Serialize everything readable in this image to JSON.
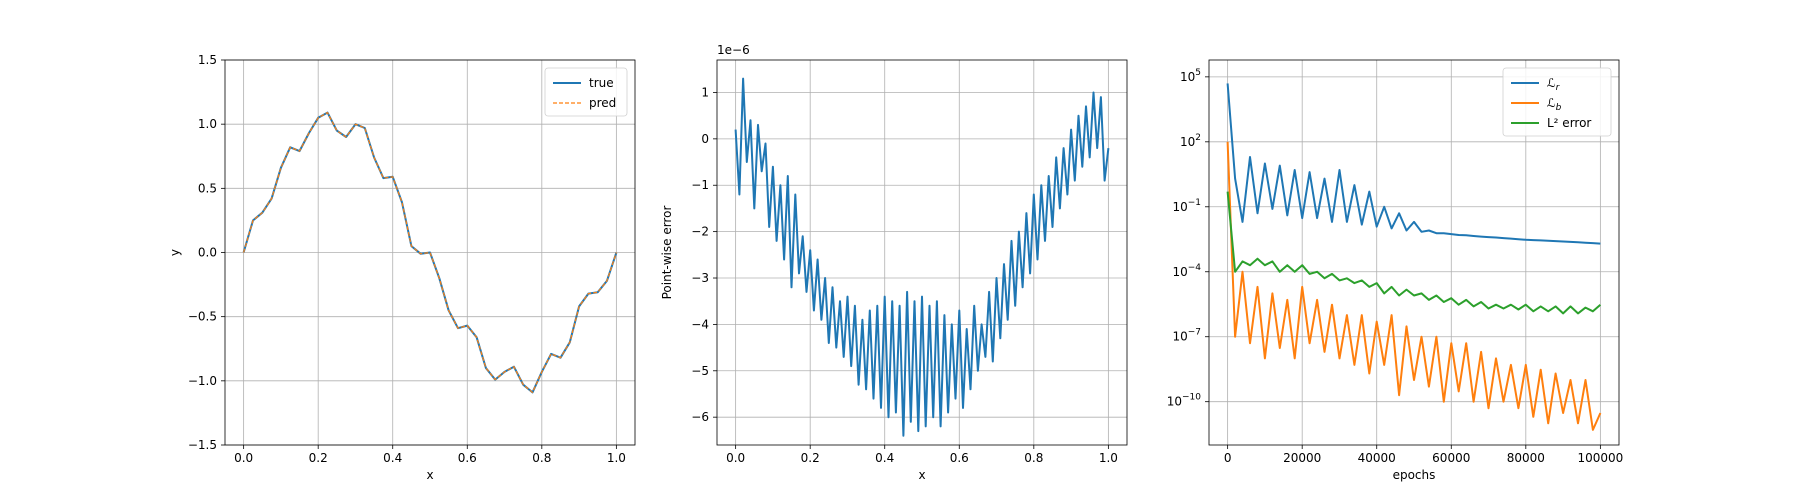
{
  "chart_data": [
    {
      "type": "line",
      "xlabel": "x",
      "ylabel": "y",
      "xlim": [
        -0.05,
        1.05
      ],
      "ylim": [
        -1.5,
        1.5
      ],
      "xticks": [
        0.0,
        0.2,
        0.4,
        0.6,
        0.8,
        1.0
      ],
      "xtick_labels": [
        "0.0",
        "0.2",
        "0.4",
        "0.6",
        "0.8",
        "1.0"
      ],
      "yticks": [
        -1.5,
        -1.0,
        -0.5,
        0.0,
        0.5,
        1.0,
        1.5
      ],
      "ytick_labels": [
        "−1.5",
        "−1.0",
        "−0.5",
        "0.0",
        "0.5",
        "1.0",
        "1.5"
      ],
      "grid": true,
      "legend": "top-right",
      "x": [
        0.0,
        0.025,
        0.05,
        0.075,
        0.1,
        0.125,
        0.15,
        0.175,
        0.2,
        0.225,
        0.25,
        0.275,
        0.3,
        0.325,
        0.35,
        0.375,
        0.4,
        0.425,
        0.45,
        0.475,
        0.5,
        0.525,
        0.55,
        0.575,
        0.6,
        0.625,
        0.65,
        0.675,
        0.7,
        0.725,
        0.75,
        0.775,
        0.8,
        0.825,
        0.85,
        0.875,
        0.9,
        0.925,
        0.95,
        0.975,
        1.0
      ],
      "series": [
        {
          "name": "true",
          "color": "#1f77b4",
          "style": "solid",
          "values": [
            0.0,
            0.25,
            0.31,
            0.42,
            0.66,
            0.82,
            0.79,
            0.93,
            1.05,
            1.09,
            0.95,
            0.9,
            1.0,
            0.97,
            0.74,
            0.58,
            0.59,
            0.39,
            0.05,
            -0.01,
            0.0,
            -0.2,
            -0.45,
            -0.59,
            -0.57,
            -0.66,
            -0.9,
            -0.99,
            -0.93,
            -0.89,
            -1.03,
            -1.09,
            -0.93,
            -0.79,
            -0.82,
            -0.7,
            -0.42,
            -0.32,
            -0.31,
            -0.22,
            0.0
          ]
        },
        {
          "name": "pred",
          "color": "#ff7f0e",
          "style": "dashed",
          "values": [
            0.0,
            0.25,
            0.31,
            0.42,
            0.66,
            0.82,
            0.79,
            0.93,
            1.05,
            1.09,
            0.95,
            0.9,
            1.0,
            0.97,
            0.74,
            0.58,
            0.59,
            0.39,
            0.05,
            -0.01,
            0.0,
            -0.2,
            -0.45,
            -0.59,
            -0.57,
            -0.66,
            -0.9,
            -0.99,
            -0.93,
            -0.89,
            -1.03,
            -1.09,
            -0.93,
            -0.79,
            -0.82,
            -0.7,
            -0.42,
            -0.32,
            -0.31,
            -0.22,
            0.0
          ]
        }
      ]
    },
    {
      "type": "line",
      "xlabel": "x",
      "ylabel": "Point-wise error",
      "scale_label": "1e−6",
      "xlim": [
        -0.05,
        1.05
      ],
      "ylim": [
        -6.6,
        1.7
      ],
      "xticks": [
        0.0,
        0.2,
        0.4,
        0.6,
        0.8,
        1.0
      ],
      "xtick_labels": [
        "0.0",
        "0.2",
        "0.4",
        "0.6",
        "0.8",
        "1.0"
      ],
      "yticks": [
        -6,
        -5,
        -4,
        -3,
        -2,
        -1,
        0,
        1
      ],
      "ytick_labels": [
        "−6",
        "−5",
        "−4",
        "−3",
        "−2",
        "−1",
        "0",
        "1"
      ],
      "grid": true,
      "x": [
        0.0,
        0.01,
        0.02,
        0.03,
        0.04,
        0.05,
        0.06,
        0.07,
        0.08,
        0.09,
        0.1,
        0.11,
        0.12,
        0.13,
        0.14,
        0.15,
        0.16,
        0.17,
        0.18,
        0.19,
        0.2,
        0.21,
        0.22,
        0.23,
        0.24,
        0.25,
        0.26,
        0.27,
        0.28,
        0.29,
        0.3,
        0.31,
        0.32,
        0.33,
        0.34,
        0.35,
        0.36,
        0.37,
        0.38,
        0.39,
        0.4,
        0.41,
        0.42,
        0.43,
        0.44,
        0.45,
        0.46,
        0.47,
        0.48,
        0.49,
        0.5,
        0.51,
        0.52,
        0.53,
        0.54,
        0.55,
        0.56,
        0.57,
        0.58,
        0.59,
        0.6,
        0.61,
        0.62,
        0.63,
        0.64,
        0.65,
        0.66,
        0.67,
        0.68,
        0.69,
        0.7,
        0.71,
        0.72,
        0.73,
        0.74,
        0.75,
        0.76,
        0.77,
        0.78,
        0.79,
        0.8,
        0.81,
        0.82,
        0.83,
        0.84,
        0.85,
        0.86,
        0.87,
        0.88,
        0.89,
        0.9,
        0.91,
        0.92,
        0.93,
        0.94,
        0.95,
        0.96,
        0.97,
        0.98,
        0.99,
        1.0
      ],
      "series": [
        {
          "name": "",
          "color": "#1f77b4",
          "style": "solid",
          "values": [
            0.2,
            -1.2,
            1.3,
            -0.5,
            0.4,
            -1.5,
            0.3,
            -0.7,
            -0.1,
            -1.9,
            -0.6,
            -2.2,
            -1.0,
            -2.6,
            -0.8,
            -3.2,
            -1.2,
            -2.9,
            -2.1,
            -3.3,
            -2.4,
            -3.7,
            -2.6,
            -3.9,
            -3.0,
            -4.4,
            -3.2,
            -4.5,
            -3.5,
            -4.7,
            -3.4,
            -4.9,
            -3.6,
            -5.3,
            -3.9,
            -5.4,
            -3.7,
            -5.6,
            -3.6,
            -5.8,
            -3.4,
            -6.0,
            -3.5,
            -5.9,
            -3.6,
            -6.4,
            -3.3,
            -6.1,
            -3.5,
            -6.3,
            -3.4,
            -6.2,
            -3.6,
            -6.0,
            -3.5,
            -6.2,
            -3.8,
            -5.9,
            -4.0,
            -5.6,
            -3.7,
            -5.8,
            -4.1,
            -5.4,
            -3.6,
            -5.0,
            -4.0,
            -4.7,
            -3.3,
            -4.8,
            -3.0,
            -4.3,
            -2.7,
            -3.9,
            -2.2,
            -3.6,
            -2.0,
            -3.2,
            -1.6,
            -2.9,
            -1.2,
            -2.6,
            -1.0,
            -2.2,
            -0.8,
            -1.9,
            -0.4,
            -1.5,
            -0.2,
            -1.2,
            0.2,
            -0.9,
            0.5,
            -0.6,
            0.7,
            -0.4,
            1.0,
            -0.2,
            0.9,
            -0.9,
            -0.2
          ]
        }
      ]
    },
    {
      "type": "line",
      "xlabel": "epochs",
      "ylabel": "",
      "yscale": "log",
      "xlim": [
        -5000,
        105000
      ],
      "ylim": [
        1e-12,
        600000.0
      ],
      "xticks": [
        0,
        20000,
        40000,
        60000,
        80000,
        100000
      ],
      "xtick_labels": [
        "0",
        "20000",
        "40000",
        "60000",
        "80000",
        "100000"
      ],
      "yticks": [
        1e-10,
        1e-07,
        0.0001,
        0.1,
        100,
        100000
      ],
      "ytick_labels": [
        [
          "10",
          "−10"
        ],
        [
          "10",
          "−7"
        ],
        [
          "10",
          "−4"
        ],
        [
          "10",
          "−1"
        ],
        [
          "10",
          "2"
        ],
        [
          "10",
          "5"
        ]
      ],
      "grid": true,
      "legend": "top-right",
      "x": [
        0,
        2000,
        4000,
        6000,
        8000,
        10000,
        12000,
        14000,
        16000,
        18000,
        20000,
        22000,
        24000,
        26000,
        28000,
        30000,
        32000,
        34000,
        36000,
        38000,
        40000,
        42000,
        44000,
        46000,
        48000,
        50000,
        52000,
        54000,
        56000,
        58000,
        60000,
        62000,
        64000,
        66000,
        68000,
        70000,
        72000,
        74000,
        76000,
        78000,
        80000,
        82000,
        84000,
        86000,
        88000,
        90000,
        92000,
        94000,
        96000,
        98000,
        100000
      ],
      "series": [
        {
          "name": "ℒ_r",
          "color": "#1f77b4",
          "style": "solid",
          "values": [
            50000,
            2,
            0.02,
            20,
            0.05,
            10,
            0.08,
            8,
            0.04,
            5,
            0.03,
            4,
            0.03,
            2,
            0.02,
            5,
            0.02,
            1,
            0.015,
            0.5,
            0.012,
            0.1,
            0.01,
            0.05,
            0.008,
            0.02,
            0.007,
            0.008,
            0.006,
            0.006,
            0.0055,
            0.005,
            0.0048,
            0.0045,
            0.0042,
            0.004,
            0.0038,
            0.0036,
            0.0034,
            0.0032,
            0.003,
            0.0029,
            0.0028,
            0.0027,
            0.0026,
            0.0025,
            0.0024,
            0.0023,
            0.0022,
            0.0021,
            0.002
          ]
        },
        {
          "name": "ℒ_b",
          "color": "#ff7f0e",
          "style": "solid",
          "values": [
            100,
            1e-07,
            0.0001,
            5e-08,
            2e-05,
            1e-08,
            1e-05,
            3e-08,
            5e-06,
            1e-08,
            2e-05,
            5e-08,
            5e-06,
            2e-08,
            3e-06,
            1e-08,
            1e-06,
            5e-09,
            1e-06,
            2e-09,
            5e-07,
            5e-09,
            1e-06,
            2e-10,
            3e-07,
            1e-09,
            1e-07,
            5e-10,
            1e-07,
            1e-10,
            5e-08,
            3e-10,
            5e-08,
            1e-10,
            2e-08,
            5e-11,
            1e-08,
            1e-10,
            5e-09,
            5e-11,
            5e-09,
            2e-11,
            3e-09,
            1e-11,
            2e-09,
            3e-11,
            1e-09,
            1e-11,
            1e-09,
            5e-12,
            3e-11
          ]
        },
        {
          "name": "L² error",
          "color": "#2ca02c",
          "style": "solid",
          "values": [
            0.5,
            0.0001,
            0.0003,
            0.0002,
            0.0004,
            0.0002,
            0.0003,
            0.0001,
            0.0002,
            0.0001,
            0.0002,
            8e-05,
            0.0001,
            5e-05,
            8e-05,
            4e-05,
            5e-05,
            3e-05,
            4e-05,
            2e-05,
            3e-05,
            1e-05,
            2e-05,
            8e-06,
            1.5e-05,
            8e-06,
            1e-05,
            5e-06,
            8e-06,
            4e-06,
            6e-06,
            3e-06,
            5e-06,
            2.5e-06,
            4e-06,
            2e-06,
            3e-06,
            2e-06,
            3e-06,
            1.8e-06,
            3e-06,
            1.5e-06,
            2.5e-06,
            1.5e-06,
            2.5e-06,
            1.2e-06,
            2.5e-06,
            1.2e-06,
            2.2e-06,
            1.5e-06,
            3e-06
          ]
        }
      ]
    }
  ]
}
